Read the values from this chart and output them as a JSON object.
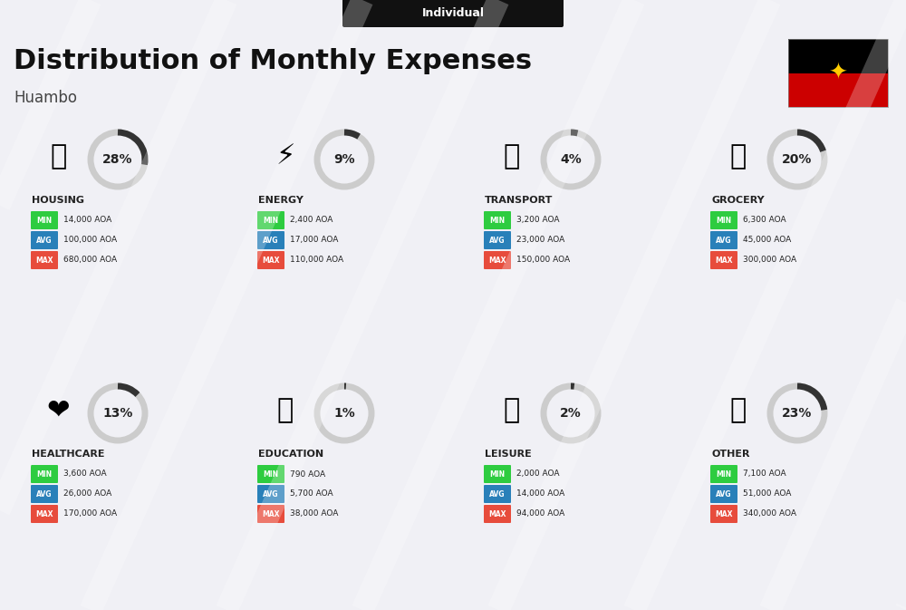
{
  "title": "Distribution of Monthly Expenses",
  "subtitle": "Individual",
  "city": "Huambo",
  "background_color": "#f0f0f5",
  "categories": [
    {
      "name": "HOUSING",
      "percent": 28,
      "min_val": "14,000 AOA",
      "avg_val": "100,000 AOA",
      "max_val": "680,000 AOA",
      "row": 0,
      "col": 0
    },
    {
      "name": "ENERGY",
      "percent": 9,
      "min_val": "2,400 AOA",
      "avg_val": "17,000 AOA",
      "max_val": "110,000 AOA",
      "row": 0,
      "col": 1
    },
    {
      "name": "TRANSPORT",
      "percent": 4,
      "min_val": "3,200 AOA",
      "avg_val": "23,000 AOA",
      "max_val": "150,000 AOA",
      "row": 0,
      "col": 2
    },
    {
      "name": "GROCERY",
      "percent": 20,
      "min_val": "6,300 AOA",
      "avg_val": "45,000 AOA",
      "max_val": "300,000 AOA",
      "row": 0,
      "col": 3
    },
    {
      "name": "HEALTHCARE",
      "percent": 13,
      "min_val": "3,600 AOA",
      "avg_val": "26,000 AOA",
      "max_val": "170,000 AOA",
      "row": 1,
      "col": 0
    },
    {
      "name": "EDUCATION",
      "percent": 1,
      "min_val": "790 AOA",
      "avg_val": "5,700 AOA",
      "max_val": "38,000 AOA",
      "row": 1,
      "col": 1
    },
    {
      "name": "LEISURE",
      "percent": 2,
      "min_val": "2,000 AOA",
      "avg_val": "14,000 AOA",
      "max_val": "94,000 AOA",
      "row": 1,
      "col": 2
    },
    {
      "name": "OTHER",
      "percent": 23,
      "min_val": "7,100 AOA",
      "avg_val": "51,000 AOA",
      "max_val": "340,000 AOA",
      "row": 1,
      "col": 3
    }
  ],
  "min_color": "#2ecc40",
  "avg_color": "#2980b9",
  "max_color": "#e74c3c",
  "arc_color": "#333333",
  "arc_bg_color": "#cccccc",
  "label_color": "#222222",
  "badge_text_color": "#ffffff",
  "title_color": "#111111",
  "subtitle_box_color": "#111111",
  "subtitle_text_color": "#ffffff",
  "city_color": "#444444"
}
